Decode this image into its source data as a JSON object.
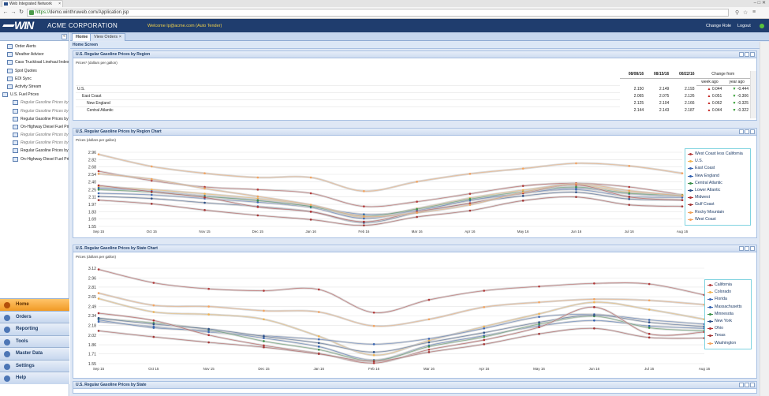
{
  "browser": {
    "tab_title": "Web Integrated Network",
    "url_scheme": "https://",
    "url_rest": "demo.winthruweb.com/Application.jsp"
  },
  "app": {
    "brand": "WIN",
    "company": "ACME CORPORATION",
    "welcome": "Welcome lp@acme.com (Auto Tender)",
    "change_role": "Change Role",
    "logout": "Logout"
  },
  "sidebar": {
    "items": [
      {
        "label": "Order Alerts",
        "italic": false
      },
      {
        "label": "Weather Advisor",
        "italic": false
      },
      {
        "label": "Cass Truckload Linehaul Index",
        "italic": false
      },
      {
        "label": "Spot Quotes",
        "italic": false
      },
      {
        "label": "EDI Sync",
        "italic": false
      },
      {
        "label": "Activity Stream",
        "italic": false
      },
      {
        "label": "U.S. Fuel Prices",
        "italic": false
      },
      {
        "label": "Regular Gasoline Prices by Region",
        "italic": true
      },
      {
        "label": "Regular Gasoline Prices by Region",
        "italic": true
      },
      {
        "label": "Regular Gasoline Prices by State",
        "italic": false
      },
      {
        "label": "On-Highway Diesel Fuel Prices",
        "italic": false
      },
      {
        "label": "Regular Gasoline Prices by Region",
        "italic": true
      },
      {
        "label": "Regular Gasoline Prices by State",
        "italic": true
      },
      {
        "label": "Regular Gasoline Prices by State",
        "italic": false
      },
      {
        "label": "On-Highway Diesel Fuel Prices",
        "italic": false
      }
    ],
    "nav": [
      "Home",
      "Orders",
      "Reporting",
      "Tools",
      "Master Data",
      "Settings",
      "Help"
    ]
  },
  "main": {
    "tabs": [
      "Home",
      "View Orders"
    ],
    "screen_title": "Home Screen"
  },
  "table_panel": {
    "title": "U.S. Regular Gasoline Prices by Region",
    "unit": "Prices* (dollars per gallon)",
    "headers": [
      "08/08/16",
      "08/15/16",
      "08/22/16",
      "Change from"
    ],
    "subheaders": [
      "week ago",
      "year ago"
    ],
    "rows": [
      {
        "name": "U.S.",
        "v1": "2.150",
        "v2": "2.149",
        "v3": "2.193",
        "wk": "0.044",
        "yr": "-0.444",
        "wk_dir": "up",
        "yr_dir": "down"
      },
      {
        "name": "East Coast",
        "v1": "2.065",
        "v2": "2.075",
        "v3": "2.126",
        "wk": "0.051",
        "yr": "-0.306",
        "wk_dir": "up",
        "yr_dir": "down"
      },
      {
        "name": "New England",
        "v1": "2.125",
        "v2": "2.104",
        "v3": "2.166",
        "wk": "0.062",
        "yr": "-0.325",
        "wk_dir": "up",
        "yr_dir": "down"
      },
      {
        "name": "Central Atlantic",
        "v1": "2.144",
        "v2": "2.143",
        "v3": "2.187",
        "wk": "0.044",
        "yr": "-0.322",
        "wk_dir": "up",
        "yr_dir": "down"
      }
    ]
  },
  "region_chart_panel": {
    "title": "U.S. Regular Gasoline Prices by Region Chart",
    "unit": "Prices (dollars per gallon)"
  },
  "state_chart_panel": {
    "title": "U.S. Regular Gasoline Prices by State Chart",
    "unit": "Prices (dollars per gallon)"
  },
  "bottom_panel": {
    "title": "U.S. Regular Gasoline Prices by State"
  },
  "colors": {
    "accent": "#1f3d6e",
    "active_nav": "#f19a24"
  },
  "chart_data": [
    {
      "type": "line",
      "title": "U.S. Regular Gasoline Prices by Region Chart",
      "ylabel": "Prices (dollars per gallon)",
      "ylim": [
        1.55,
        2.96
      ],
      "yticks": [
        "2.96",
        "2.82",
        "2.68",
        "2.54",
        "2.40",
        "2.25",
        "2.11",
        "1.97",
        "1.83",
        "1.69",
        "1.55"
      ],
      "categories": [
        "Sep 15",
        "Oct 15",
        "Nov 15",
        "Dec 15",
        "Jan 16",
        "Feb 16",
        "Mar 16",
        "Apr 16",
        "May 16",
        "Jun 16",
        "Jul 16",
        "Aug 16"
      ],
      "legend_position": "right",
      "series": [
        {
          "name": "West Coast less California",
          "color": "#b33b3b",
          "values": [
            2.6,
            2.42,
            2.3,
            2.25,
            2.18,
            1.93,
            2.02,
            2.17,
            2.32,
            2.37,
            2.3,
            2.15
          ]
        },
        {
          "name": "U.S.",
          "color": "#f0b453",
          "values": [
            2.31,
            2.25,
            2.17,
            2.08,
            1.95,
            1.72,
            1.89,
            2.09,
            2.24,
            2.34,
            2.2,
            2.15
          ]
        },
        {
          "name": "East Coast",
          "color": "#3c67b4",
          "values": [
            2.18,
            2.15,
            2.08,
            2.01,
            1.91,
            1.7,
            1.86,
            2.04,
            2.18,
            2.25,
            2.12,
            2.1
          ]
        },
        {
          "name": "New England",
          "color": "#2f60b0",
          "values": [
            2.28,
            2.22,
            2.13,
            2.05,
            1.93,
            1.78,
            1.85,
            2.05,
            2.18,
            2.28,
            2.17,
            2.12
          ]
        },
        {
          "name": "Central Atlantic",
          "color": "#3a8f49",
          "values": [
            2.25,
            2.2,
            2.12,
            2.04,
            1.93,
            1.75,
            1.88,
            2.07,
            2.21,
            2.3,
            2.18,
            2.14
          ]
        },
        {
          "name": "Lower Atlantic",
          "color": "#2c4f86",
          "values": [
            2.12,
            2.08,
            2.0,
            1.93,
            1.83,
            1.62,
            1.81,
            1.99,
            2.13,
            2.2,
            2.07,
            2.05
          ]
        },
        {
          "name": "Midwest",
          "color": "#b03030",
          "values": [
            2.33,
            2.21,
            2.1,
            1.92,
            1.83,
            1.64,
            1.83,
            1.99,
            2.18,
            2.34,
            2.11,
            2.05
          ]
        },
        {
          "name": "Gulf Coast",
          "color": "#a33636",
          "values": [
            2.05,
            1.98,
            1.86,
            1.76,
            1.68,
            1.57,
            1.73,
            1.85,
            2.04,
            2.11,
            1.96,
            1.93
          ]
        },
        {
          "name": "Rocky Mountain",
          "color": "#f0a35a",
          "values": [
            2.55,
            2.45,
            2.27,
            2.12,
            1.96,
            1.74,
            1.81,
            1.96,
            2.2,
            2.36,
            2.23,
            2.13
          ]
        },
        {
          "name": "West Coast",
          "color": "#f4a460",
          "values": [
            2.92,
            2.69,
            2.56,
            2.48,
            2.48,
            2.22,
            2.4,
            2.55,
            2.65,
            2.75,
            2.7,
            2.56
          ]
        }
      ]
    },
    {
      "type": "line",
      "title": "U.S. Regular Gasoline Prices by State Chart",
      "ylabel": "Prices (dollars per gallon)",
      "ylim": [
        1.55,
        3.12
      ],
      "yticks": [
        "3.12",
        "2.96",
        "2.81",
        "2.65",
        "2.49",
        "2.34",
        "2.18",
        "2.02",
        "1.86",
        "1.71",
        "1.55"
      ],
      "categories": [
        "Sep 15",
        "Oct 15",
        "Nov 15",
        "Dec 15",
        "Jan 16",
        "Feb 16",
        "Mar 16",
        "Apr 16",
        "May 16",
        "Jun 16",
        "Jul 16",
        "Aug 16"
      ],
      "legend_position": "right",
      "series": [
        {
          "name": "California",
          "color": "#b33b3b",
          "values": [
            3.1,
            2.88,
            2.78,
            2.75,
            2.77,
            2.39,
            2.6,
            2.75,
            2.82,
            2.87,
            2.86,
            2.68
          ]
        },
        {
          "name": "Colorado",
          "color": "#f0b453",
          "values": [
            2.62,
            2.4,
            2.36,
            2.28,
            2.0,
            1.69,
            1.93,
            2.16,
            2.37,
            2.56,
            2.44,
            2.28
          ]
        },
        {
          "name": "Florida",
          "color": "#3c67b4",
          "values": [
            2.24,
            2.16,
            2.07,
            2.01,
            1.95,
            1.87,
            1.96,
            2.13,
            2.32,
            2.36,
            2.27,
            2.2
          ]
        },
        {
          "name": "Massachusetts",
          "color": "#2f60b0",
          "values": [
            2.27,
            2.14,
            2.09,
            1.97,
            1.83,
            1.61,
            1.85,
            2.01,
            2.17,
            2.26,
            2.17,
            2.13
          ]
        },
        {
          "name": "Minnesota",
          "color": "#3a8f49",
          "values": [
            2.29,
            2.22,
            2.11,
            1.92,
            1.78,
            1.6,
            1.83,
            1.99,
            2.2,
            2.33,
            2.14,
            2.09
          ]
        },
        {
          "name": "New York",
          "color": "#2c4f86",
          "values": [
            2.3,
            2.2,
            2.12,
            2.0,
            1.89,
            1.74,
            1.9,
            2.06,
            2.23,
            2.35,
            2.23,
            2.16
          ]
        },
        {
          "name": "Ohio",
          "color": "#b03030",
          "values": [
            2.38,
            2.26,
            2.02,
            1.85,
            1.72,
            1.56,
            1.78,
            1.94,
            2.15,
            2.48,
            2.04,
            2.07
          ]
        },
        {
          "name": "Texas",
          "color": "#a33636",
          "values": [
            2.09,
            1.99,
            1.9,
            1.82,
            1.71,
            1.59,
            1.74,
            1.87,
            2.04,
            2.13,
            1.98,
            1.97
          ]
        },
        {
          "name": "Washington",
          "color": "#f4a460",
          "values": [
            2.71,
            2.51,
            2.49,
            2.42,
            2.4,
            2.17,
            2.28,
            2.48,
            2.56,
            2.61,
            2.59,
            2.52
          ]
        }
      ]
    }
  ]
}
